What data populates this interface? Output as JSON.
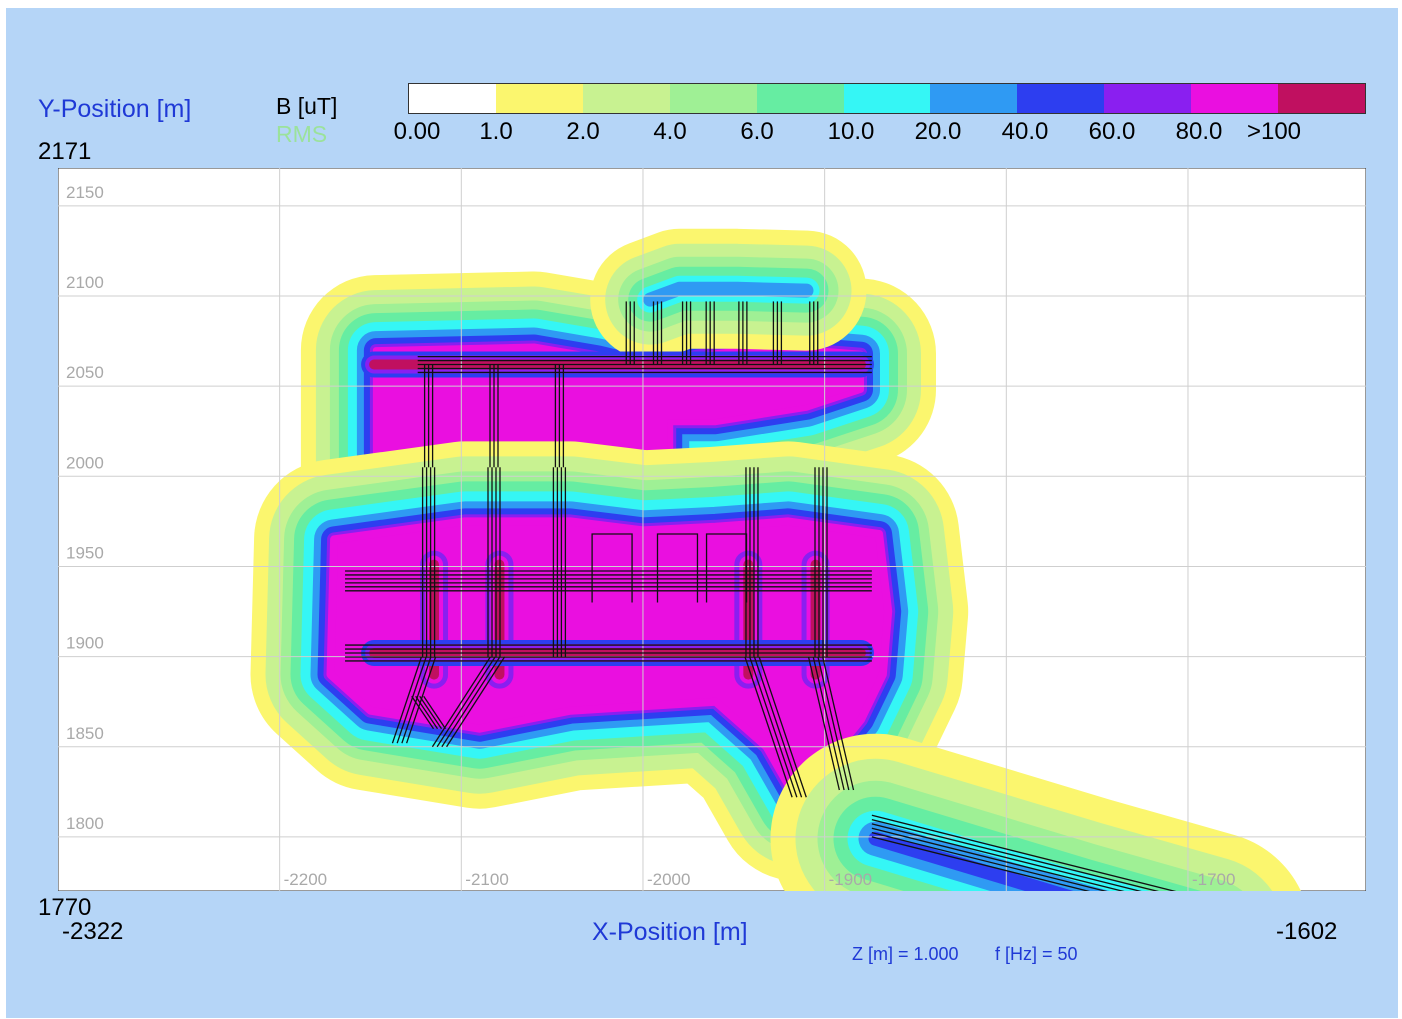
{
  "labels": {
    "y_title": "Y-Position [m]",
    "y_max": "2171",
    "y_min": "1770",
    "b_title": "B [uT]",
    "rms": "RMS",
    "x_title": "X-Position [m]",
    "x_min": "-2322",
    "x_max": "-1602",
    "z_info": "Z [m] = 1.000",
    "f_info": "f [Hz] = 50"
  },
  "colorbar": {
    "colors": [
      "#ffffff",
      "#fbf66e",
      "#c8f291",
      "#9ff095",
      "#66eda2",
      "#35f6f5",
      "#2f9af3",
      "#2d3ef0",
      "#8a1ff0",
      "#ea0fe0",
      "#c01060"
    ],
    "tick_labels": [
      "0.00",
      "1.0",
      "2.0",
      "4.0",
      "6.0",
      "10.0",
      "20.0",
      "40.0",
      "60.0",
      "80.0",
      ">100"
    ]
  },
  "chart_data": {
    "type": "heatmap",
    "description_units": "B [uT] RMS",
    "xlim": [
      -2322,
      -1602
    ],
    "ylim": [
      1770,
      2171
    ],
    "xticks": [
      "-2200",
      "-2100",
      "-2000",
      "-1900",
      "-1700"
    ],
    "yticks": [
      "2150",
      "2100",
      "2050",
      "2000",
      "1950",
      "1900",
      "1850",
      "1800"
    ],
    "contour_levels": [
      1.0,
      2.0,
      4.0,
      6.0,
      10.0,
      20.0,
      40.0,
      60.0,
      80.0,
      100
    ],
    "grid": true
  }
}
